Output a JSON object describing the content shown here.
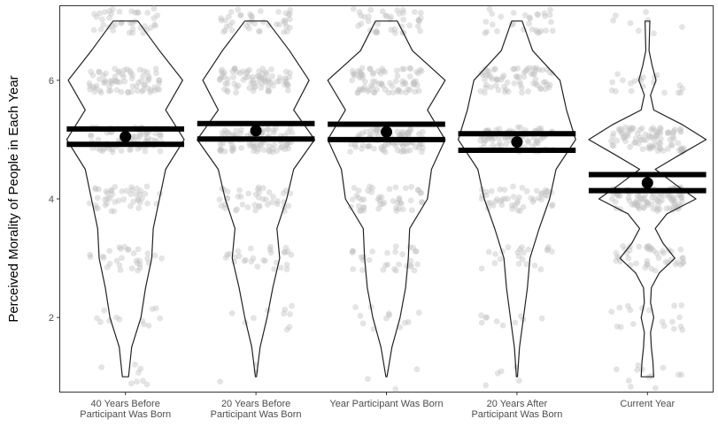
{
  "chart_data": {
    "type": "violin",
    "title": "",
    "xlabel": "",
    "ylabel": "Perceived Morality of People in Each Year",
    "ylim": [
      0.75,
      7.25
    ],
    "y_ticks": [
      2,
      4,
      6
    ],
    "grid": false,
    "legend": "none",
    "categories": [
      {
        "lines": [
          "40 Years Before",
          "Participant Was Born"
        ]
      },
      {
        "lines": [
          "20 Years Before",
          "Participant Was Born"
        ]
      },
      {
        "lines": [
          "Year Participant Was Born"
        ]
      },
      {
        "lines": [
          "20 Years After",
          "Participant Was Born"
        ]
      },
      {
        "lines": [
          "Current Year"
        ]
      }
    ],
    "series": [
      {
        "mean": 5.05,
        "ci_low": 4.92,
        "ci_high": 5.18,
        "density": [
          [
            1,
            0.02
          ],
          [
            1.5,
            0.04
          ],
          [
            2,
            0.1
          ],
          [
            2.5,
            0.13
          ],
          [
            3,
            0.17
          ],
          [
            3.5,
            0.18
          ],
          [
            4,
            0.22
          ],
          [
            4.5,
            0.26
          ],
          [
            5,
            0.38
          ],
          [
            5.5,
            0.26
          ],
          [
            6,
            0.37
          ],
          [
            6.5,
            0.22
          ],
          [
            7,
            0.08
          ]
        ],
        "counts": {
          "1": 8,
          "2": 12,
          "3": 30,
          "4": 45,
          "5": 80,
          "6": 75,
          "7": 40
        }
      },
      {
        "mean": 5.15,
        "ci_low": 5.01,
        "ci_high": 5.27,
        "density": [
          [
            1,
            0.0
          ],
          [
            1.5,
            0.03
          ],
          [
            2,
            0.08
          ],
          [
            2.5,
            0.12
          ],
          [
            3,
            0.17
          ],
          [
            3.5,
            0.15
          ],
          [
            4,
            0.22
          ],
          [
            4.5,
            0.27
          ],
          [
            5,
            0.42
          ],
          [
            5.5,
            0.27
          ],
          [
            6,
            0.38
          ],
          [
            6.5,
            0.24
          ],
          [
            7,
            0.08
          ]
        ],
        "counts": {
          "1": 3,
          "2": 10,
          "3": 28,
          "4": 42,
          "5": 85,
          "6": 80,
          "7": 42
        }
      },
      {
        "mean": 5.13,
        "ci_low": 5.0,
        "ci_high": 5.26,
        "density": [
          [
            1,
            0.0
          ],
          [
            1.5,
            0.04
          ],
          [
            2,
            0.1
          ],
          [
            2.5,
            0.14
          ],
          [
            3,
            0.16
          ],
          [
            3.5,
            0.17
          ],
          [
            4,
            0.3
          ],
          [
            4.5,
            0.33
          ],
          [
            5,
            0.43
          ],
          [
            5.5,
            0.3
          ],
          [
            6,
            0.43
          ],
          [
            6.5,
            0.19
          ],
          [
            7,
            0.08
          ]
        ],
        "counts": {
          "1": 3,
          "2": 12,
          "3": 30,
          "4": 48,
          "5": 85,
          "6": 80,
          "7": 40
        }
      },
      {
        "mean": 4.96,
        "ci_low": 4.82,
        "ci_high": 5.1,
        "density": [
          [
            1,
            0.0
          ],
          [
            1.5,
            0.02
          ],
          [
            2,
            0.05
          ],
          [
            2.5,
            0.08
          ],
          [
            3,
            0.1
          ],
          [
            3.5,
            0.17
          ],
          [
            4,
            0.25
          ],
          [
            4.5,
            0.3
          ],
          [
            5,
            0.45
          ],
          [
            5.5,
            0.38
          ],
          [
            6,
            0.33
          ],
          [
            6.5,
            0.12
          ],
          [
            7,
            0.04
          ]
        ],
        "counts": {
          "1": 5,
          "2": 10,
          "3": 22,
          "4": 48,
          "5": 88,
          "6": 70,
          "7": 30
        }
      },
      {
        "mean": 4.27,
        "ci_low": 4.14,
        "ci_high": 4.41,
        "density": [
          [
            1,
            0.08
          ],
          [
            1.25,
            0.07
          ],
          [
            1.5,
            0.05
          ],
          [
            1.75,
            0.04
          ],
          [
            2,
            0.08
          ],
          [
            2.25,
            0.04
          ],
          [
            2.5,
            0.05
          ],
          [
            2.75,
            0.15
          ],
          [
            3,
            0.35
          ],
          [
            3.25,
            0.2
          ],
          [
            3.5,
            0.1
          ],
          [
            3.75,
            0.25
          ],
          [
            4,
            0.62
          ],
          [
            4.25,
            0.35
          ],
          [
            4.5,
            0.1
          ],
          [
            4.75,
            0.42
          ],
          [
            5,
            0.75
          ],
          [
            5.25,
            0.45
          ],
          [
            5.5,
            0.08
          ],
          [
            5.75,
            0.04
          ],
          [
            6,
            0.11
          ],
          [
            6.25,
            0.06
          ],
          [
            6.5,
            0.02
          ],
          [
            7,
            0.03
          ]
        ],
        "counts": {
          "1": 12,
          "2": 18,
          "3": 45,
          "4": 95,
          "5": 90,
          "6": 20,
          "7": 8
        }
      }
    ]
  }
}
